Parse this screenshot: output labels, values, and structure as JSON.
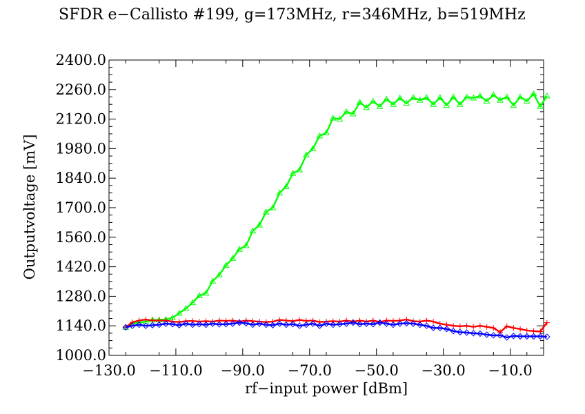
{
  "chart_data": {
    "type": "line",
    "title": "SFDR e−Callisto #199, g=173MHz, r=346MHz, b=519MHz",
    "xlabel": "rf−input power [dBm]",
    "ylabel": "Outputvoltage [mV]",
    "xlim": [
      -130,
      0
    ],
    "ylim": [
      1000,
      2400
    ],
    "grid": false,
    "xticks": [
      -130,
      -110,
      -90,
      -70,
      -50,
      -30,
      -10
    ],
    "xtick_labels": [
      "−130.0",
      "−110.0",
      "−90.0",
      "−70.0",
      "−50.0",
      "−30.0",
      "−10.0"
    ],
    "yticks": [
      1000,
      1140,
      1280,
      1420,
      1560,
      1700,
      1840,
      1980,
      2120,
      2260,
      2400
    ],
    "ytick_labels": [
      "1000.0",
      "1140.0",
      "1280.0",
      "1420.0",
      "1560.0",
      "1700.0",
      "1840.0",
      "1980.0",
      "2120.0",
      "2260.0",
      "2400.0"
    ],
    "series": [
      {
        "color": "#00ff00",
        "marker": "triangle",
        "points": [
          [
            -125,
            1133
          ],
          [
            -123,
            1150
          ],
          [
            -121,
            1155
          ],
          [
            -119,
            1160
          ],
          [
            -117,
            1168
          ],
          [
            -115,
            1168
          ],
          [
            -113,
            1170
          ],
          [
            -111,
            1178
          ],
          [
            -109,
            1200
          ],
          [
            -107,
            1222
          ],
          [
            -105,
            1250
          ],
          [
            -103,
            1283
          ],
          [
            -101,
            1295
          ],
          [
            -99,
            1352
          ],
          [
            -97,
            1382
          ],
          [
            -95,
            1427
          ],
          [
            -93,
            1460
          ],
          [
            -91,
            1503
          ],
          [
            -89,
            1520
          ],
          [
            -87,
            1590
          ],
          [
            -85,
            1618
          ],
          [
            -83,
            1680
          ],
          [
            -81,
            1700
          ],
          [
            -79,
            1770
          ],
          [
            -77,
            1800
          ],
          [
            -75,
            1863
          ],
          [
            -73,
            1880
          ],
          [
            -71,
            1950
          ],
          [
            -69,
            1980
          ],
          [
            -67,
            2040
          ],
          [
            -65,
            2055
          ],
          [
            -63,
            2125
          ],
          [
            -61,
            2120
          ],
          [
            -59,
            2155
          ],
          [
            -57,
            2145
          ],
          [
            -55,
            2200
          ],
          [
            -53,
            2175
          ],
          [
            -51,
            2205
          ],
          [
            -49,
            2180
          ],
          [
            -47,
            2215
          ],
          [
            -45,
            2190
          ],
          [
            -43,
            2220
          ],
          [
            -41,
            2195
          ],
          [
            -39,
            2222
          ],
          [
            -37,
            2210
          ],
          [
            -35,
            2222
          ],
          [
            -33,
            2190
          ],
          [
            -31,
            2222
          ],
          [
            -29,
            2185
          ],
          [
            -27,
            2225
          ],
          [
            -25,
            2190
          ],
          [
            -23,
            2225
          ],
          [
            -21,
            2220
          ],
          [
            -19,
            2230
          ],
          [
            -17,
            2205
          ],
          [
            -15,
            2235
          ],
          [
            -13,
            2210
          ],
          [
            -11,
            2225
          ],
          [
            -9,
            2185
          ],
          [
            -7,
            2225
          ],
          [
            -5,
            2205
          ],
          [
            -3,
            2240
          ],
          [
            -1,
            2180
          ],
          [
            1,
            2230
          ]
        ]
      },
      {
        "color": "#ff0000",
        "marker": "plus",
        "points": [
          [
            -125,
            1133
          ],
          [
            -123,
            1157
          ],
          [
            -121,
            1165
          ],
          [
            -119,
            1170
          ],
          [
            -117,
            1165
          ],
          [
            -115,
            1165
          ],
          [
            -113,
            1165
          ],
          [
            -111,
            1160
          ],
          [
            -109,
            1158
          ],
          [
            -107,
            1162
          ],
          [
            -105,
            1163
          ],
          [
            -103,
            1160
          ],
          [
            -101,
            1162
          ],
          [
            -99,
            1160
          ],
          [
            -97,
            1165
          ],
          [
            -95,
            1163
          ],
          [
            -93,
            1165
          ],
          [
            -91,
            1160
          ],
          [
            -89,
            1165
          ],
          [
            -87,
            1162
          ],
          [
            -85,
            1160
          ],
          [
            -83,
            1158
          ],
          [
            -81,
            1160
          ],
          [
            -79,
            1168
          ],
          [
            -77,
            1165
          ],
          [
            -75,
            1162
          ],
          [
            -73,
            1168
          ],
          [
            -71,
            1163
          ],
          [
            -69,
            1165
          ],
          [
            -67,
            1158
          ],
          [
            -65,
            1160
          ],
          [
            -63,
            1162
          ],
          [
            -61,
            1160
          ],
          [
            -59,
            1165
          ],
          [
            -57,
            1160
          ],
          [
            -55,
            1165
          ],
          [
            -53,
            1160
          ],
          [
            -51,
            1165
          ],
          [
            -49,
            1158
          ],
          [
            -47,
            1165
          ],
          [
            -45,
            1163
          ],
          [
            -43,
            1165
          ],
          [
            -41,
            1170
          ],
          [
            -39,
            1162
          ],
          [
            -37,
            1160
          ],
          [
            -35,
            1165
          ],
          [
            -33,
            1160
          ],
          [
            -31,
            1150
          ],
          [
            -29,
            1145
          ],
          [
            -27,
            1140
          ],
          [
            -25,
            1138
          ],
          [
            -23,
            1140
          ],
          [
            -21,
            1135
          ],
          [
            -19,
            1140
          ],
          [
            -17,
            1135
          ],
          [
            -15,
            1130
          ],
          [
            -13,
            1110
          ],
          [
            -11,
            1138
          ],
          [
            -9,
            1130
          ],
          [
            -7,
            1125
          ],
          [
            -5,
            1118
          ],
          [
            -3,
            1115
          ],
          [
            -1,
            1113
          ],
          [
            1,
            1155
          ]
        ]
      },
      {
        "color": "#0000ff",
        "marker": "diamond",
        "points": [
          [
            -125,
            1133
          ],
          [
            -123,
            1140
          ],
          [
            -121,
            1145
          ],
          [
            -119,
            1140
          ],
          [
            -117,
            1143
          ],
          [
            -115,
            1145
          ],
          [
            -113,
            1150
          ],
          [
            -111,
            1148
          ],
          [
            -109,
            1143
          ],
          [
            -107,
            1150
          ],
          [
            -105,
            1145
          ],
          [
            -103,
            1148
          ],
          [
            -101,
            1145
          ],
          [
            -99,
            1150
          ],
          [
            -97,
            1147
          ],
          [
            -95,
            1148
          ],
          [
            -93,
            1150
          ],
          [
            -91,
            1155
          ],
          [
            -89,
            1152
          ],
          [
            -87,
            1145
          ],
          [
            -85,
            1150
          ],
          [
            -83,
            1145
          ],
          [
            -81,
            1143
          ],
          [
            -79,
            1150
          ],
          [
            -77,
            1145
          ],
          [
            -75,
            1148
          ],
          [
            -73,
            1140
          ],
          [
            -71,
            1145
          ],
          [
            -69,
            1150
          ],
          [
            -67,
            1140
          ],
          [
            -65,
            1150
          ],
          [
            -63,
            1145
          ],
          [
            -61,
            1148
          ],
          [
            -59,
            1150
          ],
          [
            -57,
            1155
          ],
          [
            -55,
            1148
          ],
          [
            -53,
            1150
          ],
          [
            -51,
            1148
          ],
          [
            -49,
            1155
          ],
          [
            -47,
            1150
          ],
          [
            -45,
            1145
          ],
          [
            -43,
            1150
          ],
          [
            -41,
            1152
          ],
          [
            -39,
            1150
          ],
          [
            -37,
            1145
          ],
          [
            -35,
            1140
          ],
          [
            -33,
            1130
          ],
          [
            -31,
            1130
          ],
          [
            -29,
            1125
          ],
          [
            -27,
            1115
          ],
          [
            -25,
            1110
          ],
          [
            -23,
            1108
          ],
          [
            -21,
            1105
          ],
          [
            -19,
            1103
          ],
          [
            -17,
            1098
          ],
          [
            -15,
            1095
          ],
          [
            -13,
            1095
          ],
          [
            -11,
            1085
          ],
          [
            -9,
            1092
          ],
          [
            -7,
            1090
          ],
          [
            -5,
            1090
          ],
          [
            -3,
            1090
          ],
          [
            -1,
            1090
          ],
          [
            1,
            1088
          ]
        ]
      }
    ]
  }
}
